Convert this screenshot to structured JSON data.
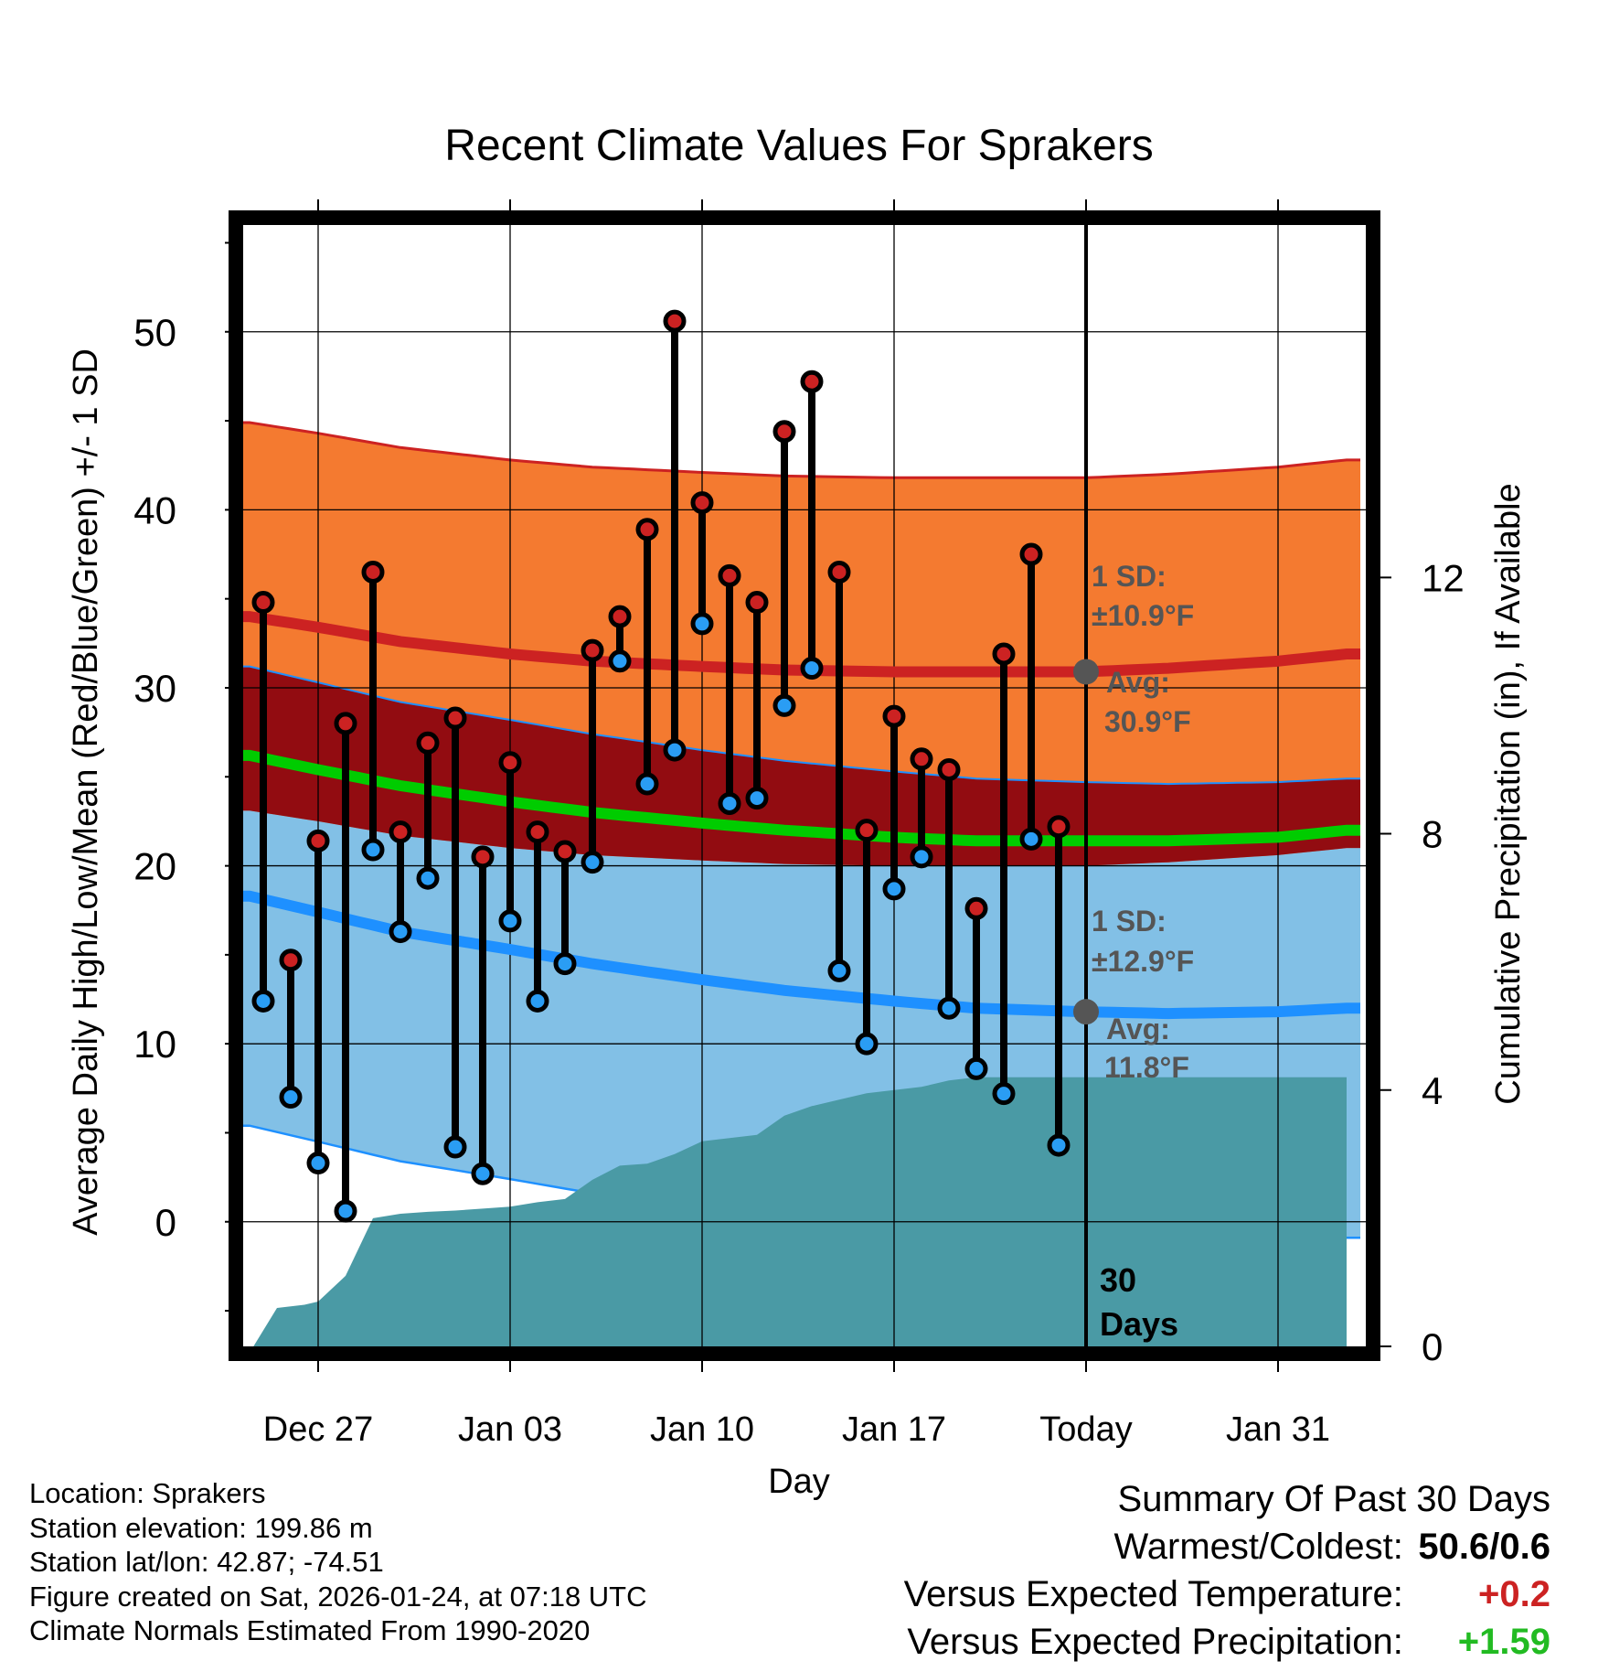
{
  "chart_data": {
    "type": "line",
    "title": "Recent Climate Values For Sprakers",
    "xlabel": "Day",
    "ylabel": "Average Daily High/Low/Mean (Red/Blue/Green) +/- 1 SD",
    "y2label": "Cumulative Precipitation (in), If Available",
    "xlim": [
      -3.5,
      38.5
    ],
    "ylim": [
      -7,
      56
    ],
    "y2lim": [
      0,
      17.5
    ],
    "yticks": [
      0,
      10,
      20,
      30,
      40,
      50
    ],
    "y2ticks": [
      0,
      4,
      8,
      12
    ],
    "xticks": [
      {
        "day": 0,
        "label": "Dec 27"
      },
      {
        "day": 7,
        "label": "Jan 03"
      },
      {
        "day": 14,
        "label": "Jan 10"
      },
      {
        "day": 21,
        "label": "Jan 17"
      },
      {
        "day": 28,
        "label": "Today"
      },
      {
        "day": 35,
        "label": "Jan 31"
      }
    ],
    "grid": true,
    "day_origin": "Dec 27",
    "days": [
      -2,
      -1,
      0,
      1,
      2,
      3,
      4,
      5,
      6,
      7,
      8,
      9,
      10,
      11,
      12,
      13,
      14,
      15,
      16,
      17,
      18,
      19,
      20,
      21,
      22,
      23,
      24,
      25,
      26,
      27
    ],
    "highs": [
      34.8,
      14.7,
      21.4,
      28.0,
      36.5,
      21.9,
      26.9,
      28.3,
      20.5,
      25.8,
      21.9,
      20.8,
      32.1,
      34.0,
      38.9,
      50.6,
      40.4,
      36.3,
      34.8,
      44.4,
      47.2,
      36.5,
      22.0,
      28.4,
      26.0,
      25.4,
      17.6,
      31.9,
      37.5,
      22.2
    ],
    "lows": [
      12.4,
      7.0,
      3.3,
      0.6,
      20.9,
      16.3,
      19.3,
      4.2,
      2.7,
      16.9,
      12.4,
      14.5,
      20.2,
      31.5,
      24.6,
      26.5,
      33.6,
      23.5,
      23.8,
      29.0,
      31.1,
      14.1,
      10.0,
      18.7,
      20.5,
      12.0,
      8.6,
      7.2,
      21.5,
      4.3
    ],
    "normal_days": [
      -2.5,
      0,
      3,
      7,
      10,
      14,
      17,
      21,
      24,
      28,
      31,
      35,
      37.5
    ],
    "normal_high": [
      34.0,
      33.4,
      32.6,
      31.9,
      31.5,
      31.2,
      31.0,
      30.9,
      30.9,
      30.9,
      31.1,
      31.5,
      31.9
    ],
    "normal_low": [
      18.3,
      17.4,
      16.3,
      15.3,
      14.5,
      13.6,
      13.0,
      12.4,
      12.0,
      11.8,
      11.7,
      11.8,
      12.0
    ],
    "normal_mean": [
      26.2,
      25.4,
      24.5,
      23.6,
      23.0,
      22.4,
      22.0,
      21.6,
      21.4,
      21.4,
      21.4,
      21.6,
      22.0
    ],
    "high_sd": 10.9,
    "low_sd": 12.9,
    "precip_days": [
      -2.5,
      -1.5,
      -0.5,
      0,
      1,
      2,
      3,
      4,
      5,
      6,
      7,
      8,
      9,
      10,
      11,
      12,
      13,
      14,
      15,
      16,
      17,
      18,
      19,
      20,
      21,
      22,
      23,
      24,
      25,
      26,
      27,
      28,
      37.5
    ],
    "precip_cum": [
      -0.1,
      0.6,
      0.65,
      0.7,
      1.1,
      2.0,
      2.07,
      2.1,
      2.12,
      2.15,
      2.18,
      2.25,
      2.3,
      2.6,
      2.82,
      2.85,
      3.0,
      3.2,
      3.25,
      3.3,
      3.6,
      3.75,
      3.85,
      3.95,
      4.0,
      4.05,
      4.15,
      4.2,
      4.2,
      4.2,
      4.2,
      4.2,
      4.2
    ],
    "annotations": {
      "high_sd_label": "1 SD:",
      "high_sd_value": "±10.9°F",
      "high_avg_label": "Avg:",
      "high_avg_value": "30.9°F",
      "low_sd_label": "1 SD:",
      "low_sd_value": "±12.9°F",
      "low_avg_label": "Avg:",
      "low_avg_value": "11.8°F",
      "days_number": "30",
      "days_word": "Days"
    },
    "colors": {
      "high_band": "#f47a30",
      "high_line": "#cc2222",
      "overlap_band": "#920c11",
      "low_band": "#82c0e6",
      "low_line": "#1e90ff",
      "mean_line": "#00cc00",
      "precip": "#4a9aa5",
      "high_dot": "#cc2222",
      "low_dot": "#2a9df4",
      "avg_dot": "#555555",
      "annotation_text": "#555555"
    }
  },
  "meta": {
    "location": "Location: Sprakers",
    "elevation": "Station elevation: 199.86 m",
    "latlon": "Station lat/lon: 42.87; -74.51",
    "created": "Figure created on Sat, 2026-01-24, at 07:18 UTC",
    "normals": "Climate Normals Estimated From 1990-2020"
  },
  "summary": {
    "title": "Summary Of Past 30 Days",
    "warmest_label": "Warmest/Coldest:",
    "warmest_value": "50.6/0.6",
    "temp_label": "Versus Expected Temperature:",
    "temp_value": "+0.2",
    "temp_color": "#cc2222",
    "precip_label": "Versus Expected Precipitation:",
    "precip_value": "+1.59",
    "precip_color": "#22bb22"
  }
}
